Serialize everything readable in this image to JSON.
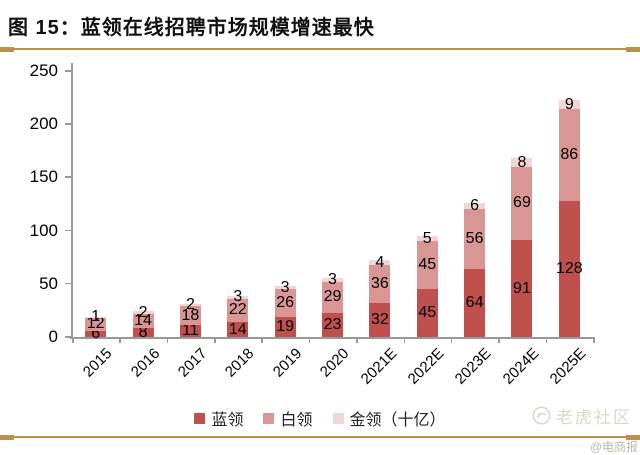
{
  "header": {
    "title": "图 15：蓝领在线招聘市场规模增速最快"
  },
  "colors": {
    "accent_gold": "#b9924f",
    "axis": "#999999",
    "data_label": "#000000"
  },
  "chart_data": {
    "type": "bar",
    "stacked": true,
    "title": "蓝领在线招聘市场规模增速最快",
    "categories": [
      "2015",
      "2016",
      "2017",
      "2018",
      "2019",
      "2020",
      "2021E",
      "2022E",
      "2023E",
      "2024E",
      "2025E"
    ],
    "series": [
      {
        "name": "蓝领",
        "color": "#c0504d",
        "values": [
          6,
          8,
          11,
          14,
          19,
          23,
          32,
          45,
          64,
          91,
          128
        ]
      },
      {
        "name": "白领",
        "color": "#d99694",
        "values": [
          12,
          14,
          18,
          22,
          26,
          29,
          36,
          45,
          56,
          69,
          86
        ]
      },
      {
        "name": "金领（十亿）",
        "color": "#efd7d6",
        "values": [
          1,
          2,
          2,
          3,
          3,
          3,
          4,
          5,
          6,
          8,
          9
        ]
      }
    ],
    "ylim": [
      0,
      250
    ],
    "yticks": [
      0,
      50,
      100,
      150,
      200,
      250
    ],
    "grid": false,
    "data_labels": true,
    "legend_position": "bottom"
  },
  "watermark": {
    "brand": "老虎社区",
    "credit": "@电商报"
  }
}
